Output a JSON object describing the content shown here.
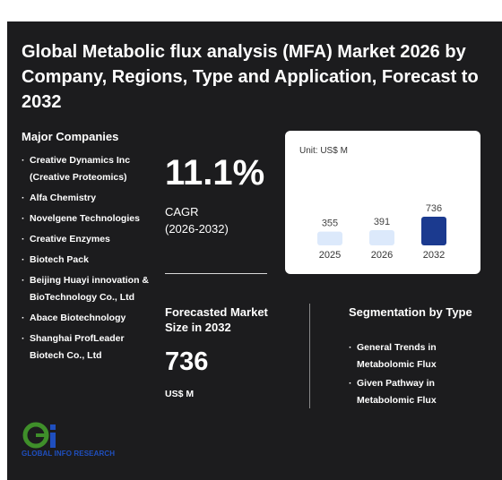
{
  "title": "Global Metabolic flux analysis (MFA) Market 2026 by Company, Regions, Type and Application, Forecast to 2032",
  "companies": {
    "heading": "Major Companies",
    "items": [
      "Creative Dynamics Inc (Creative Proteomics)",
      "Alfa Chemistry",
      "Novelgene Technologies",
      "Creative Enzymes",
      "Biotech Pack",
      "Beijing Huayi innovation & BioTechnology Co., Ltd",
      "Abace Biotechnology",
      "Shanghai ProfLeader Biotech Co., Ltd"
    ]
  },
  "cagr": {
    "value": "11.1%",
    "label": "CAGR",
    "period": "(2026-2032)"
  },
  "forecast": {
    "title": "Forecasted Market Size in 2032",
    "value": "736",
    "unit": "US$ M"
  },
  "segmentation": {
    "heading": "Segmentation by Type",
    "items": [
      "General Trends in Metabolomic Flux",
      "Given Pathway in Metabolomic Flux"
    ]
  },
  "logo": {
    "text": "GLOBAL INFO RESEARCH"
  },
  "watermark": "GLOBAL INFO RESEARCH",
  "chart_data": {
    "type": "bar",
    "unit_label": "Unit: US$ M",
    "categories": [
      "2025",
      "2026",
      "2032"
    ],
    "values": [
      355,
      391,
      736
    ],
    "colors": [
      "#dce9fb",
      "#dce9fb",
      "#1b3a8f"
    ]
  },
  "colors": {
    "background": "#1c1c1e",
    "accent": "#1b3a8f",
    "light_bar": "#dce9fb"
  }
}
